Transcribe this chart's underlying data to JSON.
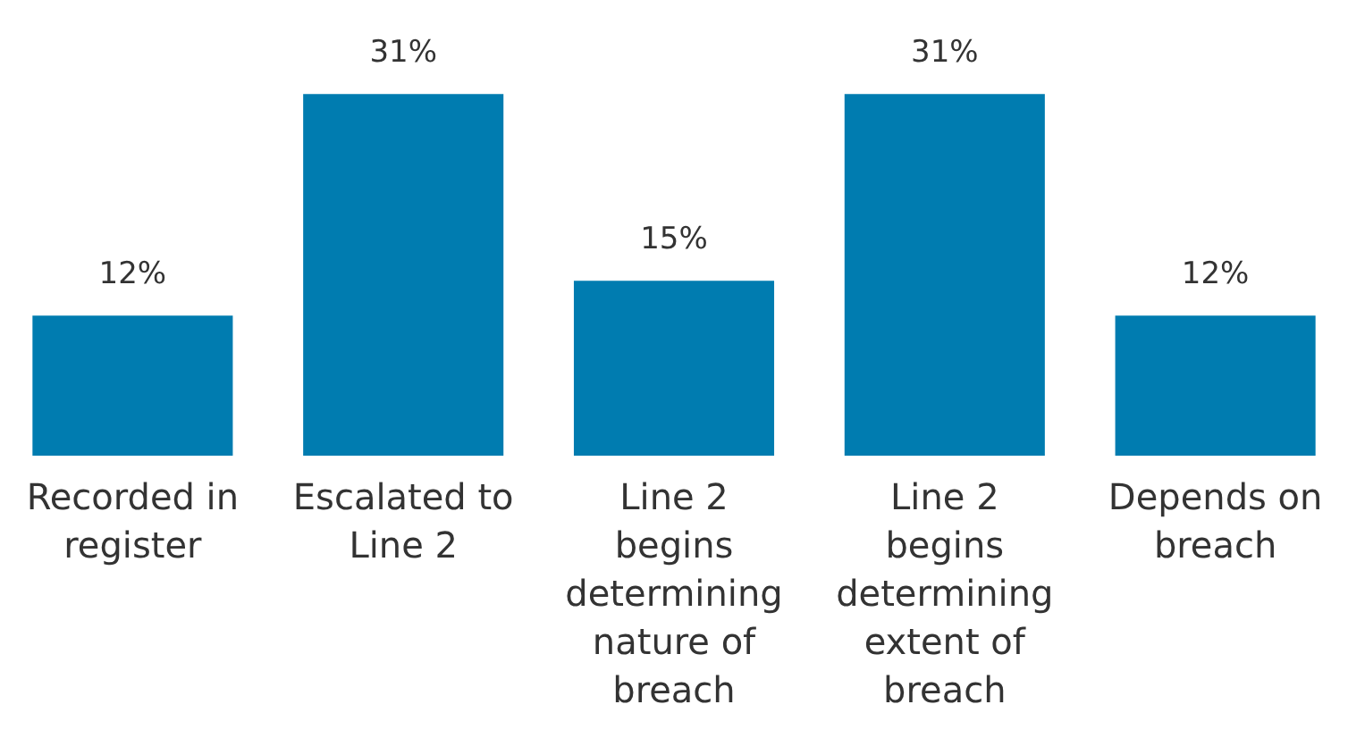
{
  "chart_data": {
    "type": "bar",
    "categories": [
      "Recorded in register",
      "Escalated to Line 2",
      "Line 2 begins determining nature of breach",
      "Line 2 begins determining extent of breach",
      "Depends on breach"
    ],
    "values": [
      12,
      31,
      15,
      31,
      12
    ],
    "value_labels": [
      "12%",
      "31%",
      "15%",
      "31%",
      "12%"
    ],
    "color": "#007cb0"
  }
}
